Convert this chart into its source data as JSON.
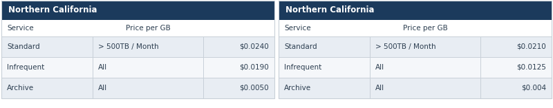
{
  "header_bg": "#1b3a5c",
  "header_text_color": "#ffffff",
  "row_odd_bg": "#e8edf3",
  "row_even_bg": "#f5f7fa",
  "subheader_bg": "#f5f7fa",
  "text_color": "#2c3e50",
  "border_color": "#c8d0d8",
  "fig_width": 8.0,
  "fig_height": 1.57,
  "dpi": 100,
  "table1": {
    "title": "Northern California",
    "subheader": [
      "Service",
      "Price per GB",
      ""
    ],
    "rows": [
      [
        "Standard",
        "> 500TB / Month",
        "$0.0240"
      ],
      [
        "Infrequent",
        "All",
        "$0.0190"
      ],
      [
        "Archive",
        "All",
        "$0.0050"
      ]
    ]
  },
  "table2": {
    "title": "Northern California",
    "subheader": [
      "Service",
      "Price per GB",
      ""
    ],
    "rows": [
      [
        "Standard",
        "> 500TB / Month",
        "$0.0210"
      ],
      [
        "Infrequent",
        "All",
        "$0.0125"
      ],
      [
        "Archive",
        "All",
        "$0.004"
      ]
    ]
  }
}
